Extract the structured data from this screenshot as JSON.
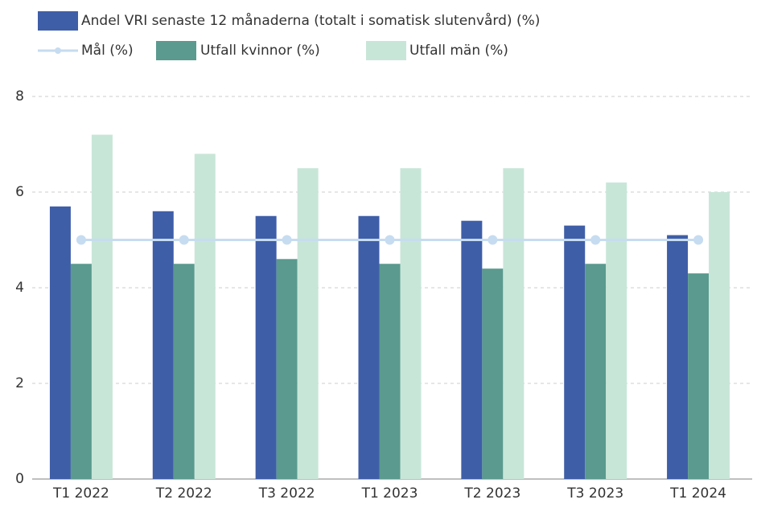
{
  "chart_data": {
    "type": "bar",
    "categories": [
      "T1 2022",
      "T2 2022",
      "T3 2022",
      "T1 2023",
      "T2 2023",
      "T3 2023",
      "T1 2024"
    ],
    "series": [
      {
        "name": "Andel VRI senaste 12 månaderna (totalt i somatisk slutenvård) (%)",
        "color": "#3f5ea8",
        "type": "bar",
        "values": [
          5.7,
          5.6,
          5.5,
          5.5,
          5.4,
          5.3,
          5.1
        ]
      },
      {
        "name": "Mål (%)",
        "color": "#c6dcf0",
        "type": "line",
        "values": [
          5,
          5,
          5,
          5,
          5,
          5,
          5
        ]
      },
      {
        "name": "Utfall kvinnor (%)",
        "color": "#5a9a8f",
        "type": "bar",
        "values": [
          4.5,
          4.5,
          4.6,
          4.5,
          4.4,
          4.5,
          4.3
        ]
      },
      {
        "name": "Utfall män (%)",
        "color": "#c8e6d8",
        "type": "bar",
        "values": [
          7.2,
          6.8,
          6.5,
          6.5,
          6.5,
          6.2,
          6.0
        ]
      }
    ],
    "ylim": [
      0,
      8
    ],
    "yticks": [
      0,
      2,
      4,
      6,
      8
    ],
    "grid": true
  }
}
